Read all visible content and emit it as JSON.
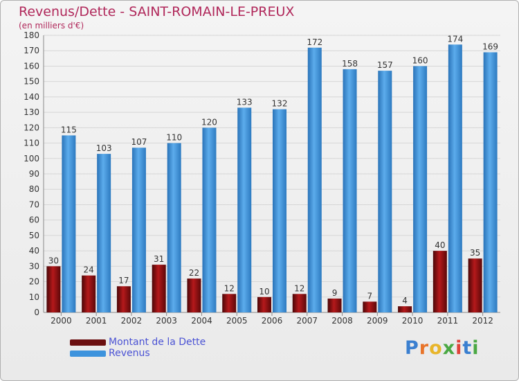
{
  "header": {
    "title": "Revenus/Dette - SAINT-ROMAIN-LE-PREUX",
    "subtitle": "(en milliers d'€)"
  },
  "chart_data": {
    "type": "bar",
    "categories": [
      "2000",
      "2001",
      "2002",
      "2003",
      "2004",
      "2005",
      "2006",
      "2007",
      "2008",
      "2009",
      "2010",
      "2011",
      "2012"
    ],
    "series": [
      {
        "name": "Montant de la Dette",
        "color": "#8b0e0e",
        "values": [
          30,
          24,
          17,
          31,
          22,
          12,
          10,
          12,
          9,
          7,
          4,
          40,
          35
        ]
      },
      {
        "name": "Revenus",
        "color": "#3d93dd",
        "values": [
          115,
          103,
          107,
          110,
          120,
          133,
          132,
          172,
          158,
          157,
          160,
          174,
          169
        ]
      }
    ],
    "ylim": [
      0,
      180
    ],
    "ytick_step": 10,
    "grid": true,
    "legend_position": "bottom-left"
  },
  "legend": {
    "items": [
      {
        "label": "Montant de la Dette",
        "color": "#6b0f10"
      },
      {
        "label": "Revenus",
        "color": "#3d93dd"
      }
    ]
  },
  "logo": {
    "letters": [
      "P",
      "r",
      "o",
      "x",
      "i",
      "t",
      "i"
    ],
    "colors": [
      "#3a7fd0",
      "#e8742a",
      "#e8b52a",
      "#4aa843",
      "#e0433a",
      "#3a7fd0",
      "#4aa843"
    ]
  }
}
